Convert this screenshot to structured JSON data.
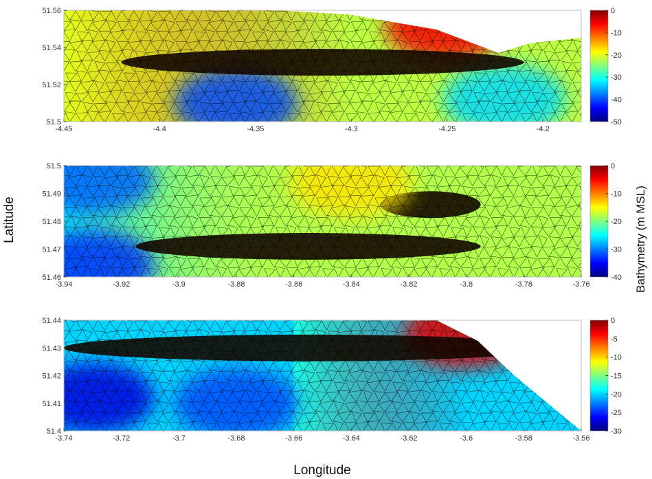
{
  "figure": {
    "ylabel": "Latitude",
    "xlabel": "Longitude",
    "colorbar_label": "Bathymetry (m MSL)",
    "colormap": [
      "#00007f",
      "#0000ff",
      "#007fff",
      "#00ffff",
      "#7fff7f",
      "#ffff00",
      "#ff7f00",
      "#ff0000",
      "#7f0000"
    ],
    "mesh_color": "#000000",
    "land_color": "#ffffff"
  },
  "chart_data": [
    {
      "type": "heatmap",
      "title": "",
      "xlim": [
        -4.45,
        -4.18
      ],
      "ylim": [
        51.5,
        51.56
      ],
      "xticks": [
        "-4.45",
        "-4.4",
        "-4.35",
        "-4.3",
        "-4.25",
        "-4.2"
      ],
      "yticks": [
        "51.5",
        "51.52",
        "51.54",
        "51.56"
      ],
      "colorbar": {
        "range": [
          -50,
          0
        ],
        "ticks": [
          "0",
          "-10",
          "-20",
          "-30",
          "-40",
          "-50"
        ]
      },
      "depth_field": {
        "background": -22,
        "gradients": [
          {
            "lon_from": -4.45,
            "lon_to": -4.3,
            "value_from": -20,
            "value_to": -5
          }
        ],
        "features": [
          {
            "kind": "shallow_area",
            "lon": -4.25,
            "lat": 51.552,
            "value": -6
          },
          {
            "kind": "deep_area",
            "lon": -4.36,
            "lat": 51.51,
            "value": -40
          },
          {
            "kind": "deep_area",
            "lon": -4.22,
            "lat": 51.512,
            "value": -33
          },
          {
            "kind": "dredged_channel",
            "lon_from": -4.42,
            "lon_to": -4.21,
            "lat": 51.532,
            "value": -48
          }
        ]
      }
    },
    {
      "type": "heatmap",
      "title": "",
      "xlim": [
        -3.94,
        -3.76
      ],
      "ylim": [
        51.46,
        51.5
      ],
      "xticks": [
        "-3.94",
        "-3.92",
        "-3.9",
        "-3.88",
        "-3.86",
        "-3.84",
        "-3.82",
        "-3.8",
        "-3.78",
        "-3.76"
      ],
      "yticks": [
        "51.46",
        "51.47",
        "51.48",
        "51.49",
        "51.5"
      ],
      "colorbar": {
        "range": [
          -40,
          0
        ],
        "ticks": [
          "0",
          "-10",
          "-20",
          "-30",
          "-40"
        ]
      },
      "depth_field": {
        "background": -18,
        "gradients": [
          {
            "lon_from": -3.94,
            "lon_to": -3.86,
            "value_from": -26,
            "value_to": -18
          }
        ],
        "features": [
          {
            "kind": "deep_area",
            "lon": -3.93,
            "lat": 51.495,
            "value": -31
          },
          {
            "kind": "deep_area",
            "lon": -3.93,
            "lat": 51.464,
            "value": -33
          },
          {
            "kind": "dredged_channel",
            "lon_from": -3.915,
            "lon_to": -3.795,
            "lat": 51.471,
            "value": -40
          },
          {
            "kind": "dredged_channel",
            "lon_from": -3.83,
            "lon_to": -3.795,
            "lat": 51.486,
            "value": -40
          },
          {
            "kind": "shallow_area",
            "lon": -3.84,
            "lat": 51.494,
            "value": -14
          }
        ]
      }
    },
    {
      "type": "heatmap",
      "title": "",
      "xlim": [
        -3.74,
        -3.56
      ],
      "ylim": [
        51.4,
        51.44
      ],
      "xticks": [
        "-3.74",
        "-3.72",
        "-3.7",
        "-3.68",
        "-3.66",
        "-3.64",
        "-3.62",
        "-3.6",
        "-3.58",
        "-3.56"
      ],
      "yticks": [
        "51.4",
        "51.41",
        "51.42",
        "51.43",
        "51.44"
      ],
      "colorbar": {
        "range": [
          -30,
          0
        ],
        "ticks": [
          "0",
          "-5",
          "-10",
          "-15",
          "-20",
          "-25",
          "-30"
        ]
      },
      "depth_field": {
        "background": -20,
        "gradients": [
          {
            "lon_from": -3.66,
            "lon_to": -3.6,
            "value_from": -18,
            "value_to": -3
          }
        ],
        "features": [
          {
            "kind": "deep_area",
            "lon": -3.73,
            "lat": 51.412,
            "value": -27
          },
          {
            "kind": "deep_area",
            "lon": -3.68,
            "lat": 51.41,
            "value": -24
          },
          {
            "kind": "shallow_area",
            "lon": -3.6,
            "lat": 51.435,
            "value": -3
          },
          {
            "kind": "dredged_channel",
            "lon_from": -3.74,
            "lon_to": -3.57,
            "lat": 51.43,
            "value": -30
          }
        ]
      }
    }
  ]
}
